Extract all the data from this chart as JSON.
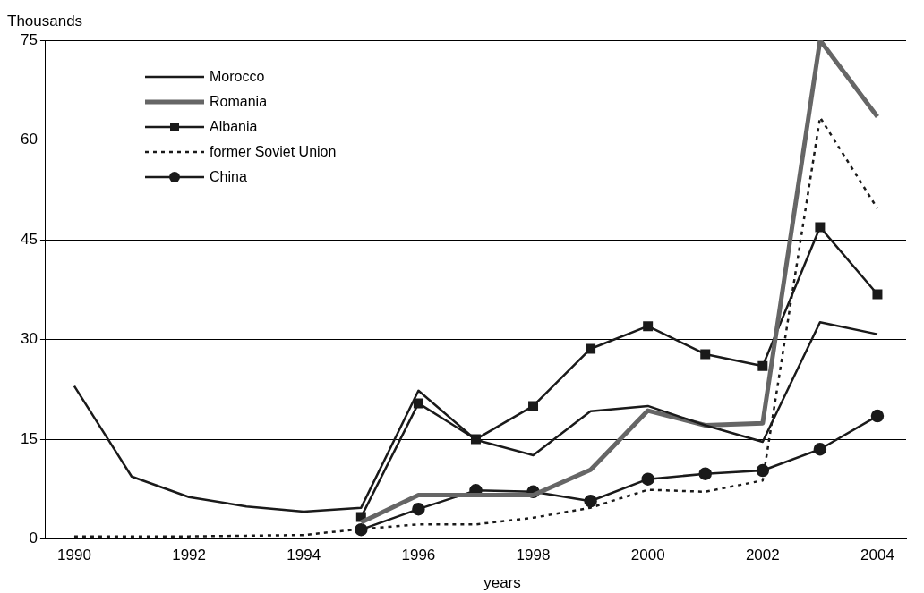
{
  "chart_data": {
    "type": "line",
    "ylabel": "Thousands",
    "xlabel": "years",
    "categories": [
      "1990",
      null,
      "1992",
      null,
      "1994",
      null,
      "1996",
      null,
      "1998",
      null,
      "2000",
      null,
      "2002",
      null,
      "2004"
    ],
    "ylim": [
      0,
      75
    ],
    "yticks": [
      0,
      15,
      30,
      45,
      60,
      75
    ],
    "grid": "y",
    "legend": "top left",
    "series": [
      {
        "name": "Morocco",
        "color": "#1a1a1a",
        "marker": "none",
        "line_style": "solid",
        "values": [
          23,
          9.4,
          6.3,
          4.9,
          4.1,
          4.7,
          22.3,
          14.9,
          12.6,
          19.2,
          20,
          17.1,
          14.6,
          32.6,
          30.8
        ]
      },
      {
        "name": "Romania",
        "color": "#666666",
        "marker": "none",
        "line_style": "solid",
        "values": [
          null,
          null,
          null,
          null,
          null,
          2.5,
          6.6,
          6.6,
          6.6,
          10.4,
          19.3,
          17.1,
          17.4,
          75,
          63.5
        ]
      },
      {
        "name": "Albania",
        "color": "#1a1a1a",
        "marker": "square",
        "line_style": "solid",
        "values": [
          null,
          null,
          null,
          null,
          null,
          3.3,
          20.4,
          15,
          20,
          28.6,
          32,
          27.8,
          26,
          46.9,
          36.8
        ]
      },
      {
        "name": "former Soviet Union",
        "color": "#1a1a1a",
        "marker": "none",
        "line_style": "dotted",
        "values": [
          0.4,
          0.4,
          0.4,
          0.5,
          0.6,
          1.5,
          2.2,
          2.2,
          3.2,
          4.7,
          7.4,
          7.1,
          8.8,
          63.4,
          49.7
        ]
      },
      {
        "name": "China",
        "color": "#1a1a1a",
        "marker": "circle",
        "line_style": "solid",
        "values": [
          null,
          null,
          null,
          null,
          null,
          1.4,
          4.5,
          7.3,
          7.1,
          5.7,
          9,
          9.8,
          10.3,
          13.5,
          18.5
        ]
      }
    ]
  }
}
